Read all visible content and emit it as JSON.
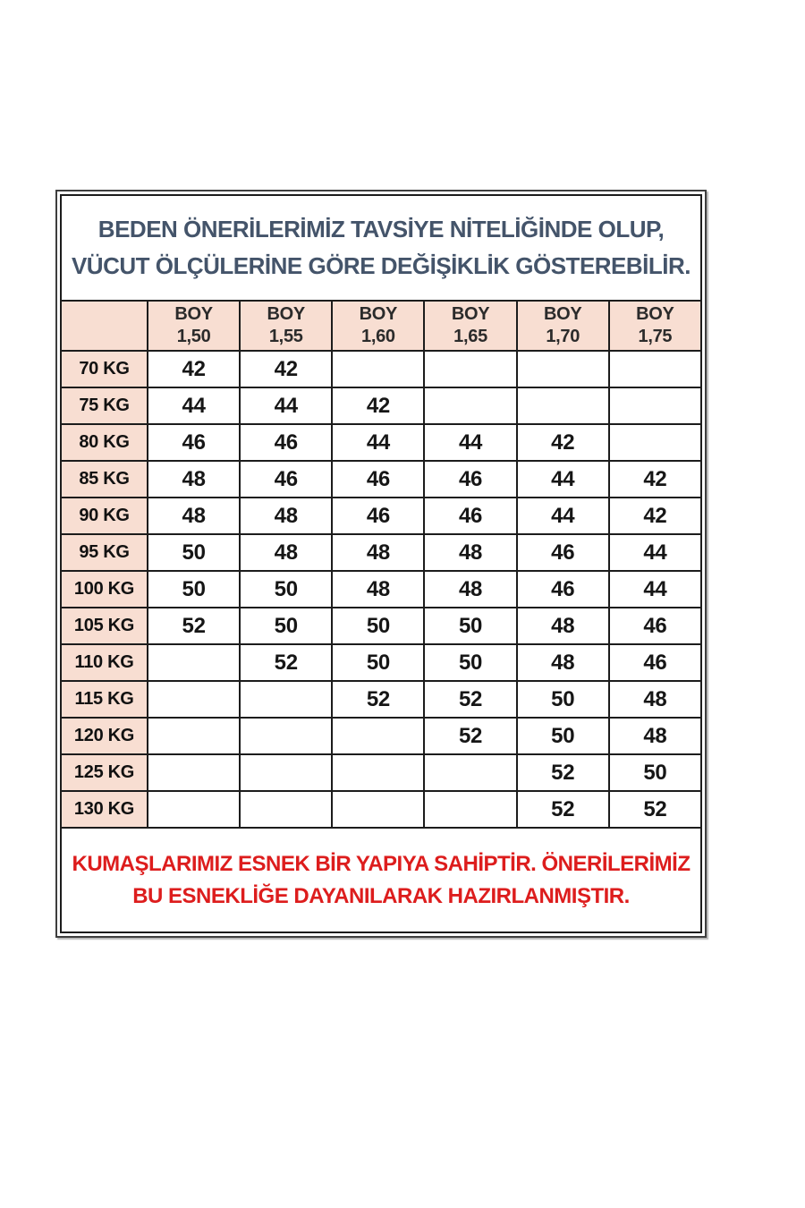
{
  "page": {
    "background": "#ffffff",
    "colors": {
      "panel_border": "#3e3e3e",
      "grid": "#1c1c1c",
      "header_bg": "#f8ded2",
      "title_text": "#44546a",
      "warning_text": "#dd1d1d",
      "cell_text": "#161616"
    }
  },
  "notice_top": {
    "line1": "BEDEN ÖNERİLERİMİZ TAVSİYE NİTELİĞİNDE OLUP,",
    "line2": "VÜCUT ÖLÇÜLERİNE GÖRE DEĞİŞİKLİK GÖSTEREBİLİR.",
    "text_color": "#44546a"
  },
  "notice_bottom": {
    "line1": "KUMAŞLARIMIZ ESNEK BİR YAPIYA SAHİPTİR. ÖNERİLERİMİZ",
    "line2": "BU ESNEKLİĞE DAYANILARAK HAZIRLANMIŞTIR.",
    "text_color": "#dd1d1d"
  },
  "chart_data": {
    "type": "table",
    "title": "Beden önerileri tablosu (kilo x boy)",
    "corner_label": "",
    "header_bg": "#f8ded2",
    "label_col_bg": "#f8ded2",
    "grid": true,
    "columns": [
      {
        "line1": "BOY",
        "line2": "1,50"
      },
      {
        "line1": "BOY",
        "line2": "1,55"
      },
      {
        "line1": "BOY",
        "line2": "1,60"
      },
      {
        "line1": "BOY",
        "line2": "1,65"
      },
      {
        "line1": "BOY",
        "line2": "1,70"
      },
      {
        "line1": "BOY",
        "line2": "1,75"
      }
    ],
    "rows": [
      {
        "label": "70 KG",
        "values": [
          "42",
          "42",
          "",
          "",
          "",
          ""
        ]
      },
      {
        "label": "75 KG",
        "values": [
          "44",
          "44",
          "42",
          "",
          "",
          ""
        ]
      },
      {
        "label": "80 KG",
        "values": [
          "46",
          "46",
          "44",
          "44",
          "42",
          ""
        ]
      },
      {
        "label": "85 KG",
        "values": [
          "48",
          "46",
          "46",
          "46",
          "44",
          "42"
        ]
      },
      {
        "label": "90 KG",
        "values": [
          "48",
          "48",
          "46",
          "46",
          "44",
          "42"
        ]
      },
      {
        "label": "95 KG",
        "values": [
          "50",
          "48",
          "48",
          "48",
          "46",
          "44"
        ]
      },
      {
        "label": "100 KG",
        "values": [
          "50",
          "50",
          "48",
          "48",
          "46",
          "44"
        ]
      },
      {
        "label": "105 KG",
        "values": [
          "52",
          "50",
          "50",
          "50",
          "48",
          "46"
        ]
      },
      {
        "label": "110 KG",
        "values": [
          "",
          "52",
          "50",
          "50",
          "48",
          "46"
        ]
      },
      {
        "label": "115 KG",
        "values": [
          "",
          "",
          "52",
          "52",
          "50",
          "48"
        ]
      },
      {
        "label": "120 KG",
        "values": [
          "",
          "",
          "",
          "52",
          "50",
          "48"
        ]
      },
      {
        "label": "125 KG",
        "values": [
          "",
          "",
          "",
          "",
          "52",
          "50"
        ]
      },
      {
        "label": "130 KG",
        "values": [
          "",
          "",
          "",
          "",
          "52",
          "52"
        ]
      }
    ]
  }
}
